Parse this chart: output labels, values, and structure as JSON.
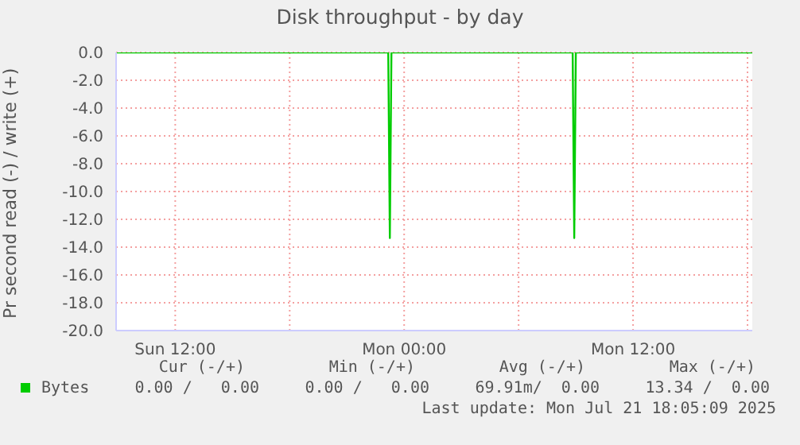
{
  "chart_data": {
    "type": "line",
    "title": "Disk throughput - by day",
    "ylabel": "Pr second read (-) / write (+)",
    "x": [
      "2025-07-20T08:54",
      "2025-07-20T23:10",
      "2025-07-20T23:15",
      "2025-07-20T23:20",
      "2025-07-21T08:50",
      "2025-07-21T08:55",
      "2025-07-21T09:00",
      "2025-07-21T18:15"
    ],
    "series": [
      {
        "name": "Bytes",
        "color": "#00cc00",
        "values": [
          0,
          0,
          -13.34,
          0,
          0,
          -13.34,
          0,
          0
        ]
      }
    ],
    "xlim": [
      "2025-07-20T08:54",
      "2025-07-21T18:15"
    ],
    "xticks": [
      {
        "value": "2025-07-20T12:00",
        "label": "Sun 12:00"
      },
      {
        "value": "2025-07-20T18:00",
        "label": null
      },
      {
        "value": "2025-07-21T00:00",
        "label": "Mon 00:00"
      },
      {
        "value": "2025-07-21T06:00",
        "label": null
      },
      {
        "value": "2025-07-21T12:00",
        "label": "Mon 12:00"
      },
      {
        "value": "2025-07-21T18:00",
        "label": null
      }
    ],
    "ylim": [
      -20,
      0
    ],
    "yticks": [
      {
        "value": -20,
        "label": "-20.0"
      },
      {
        "value": -18,
        "label": "-18.0"
      },
      {
        "value": -16,
        "label": "-16.0"
      },
      {
        "value": -14,
        "label": "-14.0"
      },
      {
        "value": -12,
        "label": "-12.0"
      },
      {
        "value": -10,
        "label": "-10.0"
      },
      {
        "value": -8,
        "label": "-8.0"
      },
      {
        "value": -6,
        "label": "-6.0"
      },
      {
        "value": -4,
        "label": "-4.0"
      },
      {
        "value": -2,
        "label": "-2.0"
      },
      {
        "value": 0,
        "label": "0.0"
      }
    ],
    "grid": true,
    "legend": "bottom left",
    "marker": "none",
    "line_style": "solid",
    "annotations": [
      "Cur (-/+)",
      "Min (-/+)",
      "Avg (-/+)",
      "Max (-/+)",
      "0.00 /   0.00",
      "0.00 /   0.00",
      "69.91m/  0.00",
      "13.34 /  0.00",
      "Last update: Mon Jul 21 18:05:09 2025"
    ]
  }
}
